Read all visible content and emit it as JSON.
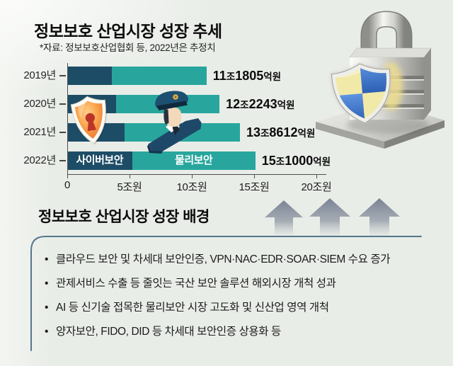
{
  "colors": {
    "background": "#e9ede8",
    "cyber_bar": "#1d4d66",
    "physical_bar": "#28a69d",
    "axis": "#4f4f4f",
    "box_border": "#4e7086",
    "arrow_gray": "#7a8394"
  },
  "header": {
    "title": "정보보호 산업시장 성장 추세",
    "source": "*자료: 정보보호산업협회 등, 2022년은 추정치"
  },
  "icons": {
    "lock": "metal-padlock-with-shield",
    "cyber": "orange-shield-keyhole",
    "physical": "security-officer",
    "arrows": "triple-up-arrows"
  },
  "chart_data": {
    "type": "bar",
    "orientation": "horizontal",
    "unit": "조원",
    "categories": [
      "2019년",
      "2020년",
      "2021년",
      "2022년"
    ],
    "series": [
      {
        "name": "사이버보안",
        "color": "#1d4d66",
        "values": [
          3.6,
          3.9,
          4.6,
          5.2
        ]
      },
      {
        "name": "물리보안",
        "color": "#28a69d",
        "values": [
          7.58,
          8.32,
          9.26,
          9.9
        ]
      }
    ],
    "totals": [
      11.1805,
      12.2243,
      13.8612,
      15.1
    ],
    "value_parts": [
      {
        "jo": "11",
        "eok": "1805"
      },
      {
        "jo": "12",
        "eok": "2243"
      },
      {
        "jo": "13",
        "eok": "8612"
      },
      {
        "jo": "15",
        "eok": "1000"
      }
    ],
    "units": {
      "trillion": "조",
      "hundred_million": "억원"
    },
    "x_ticks": [
      {
        "label": "0",
        "value": 0
      },
      {
        "label": "5조원",
        "value": 5
      },
      {
        "label": "10조원",
        "value": 10
      },
      {
        "label": "15조원",
        "value": 15
      },
      {
        "label": "20조원",
        "value": 20
      }
    ],
    "xlim": [
      0,
      20
    ],
    "segment_labels_on_row": 3,
    "legend_position": "inside-last-bar",
    "grid": false
  },
  "background_section": {
    "title": "정보보호 산업시장 성장 배경",
    "bullets": [
      "클라우드 보안 및 차세대 보안인증, VPN·NAC·EDR·SOAR·SIEM 수요 증가",
      "관제서비스 수출 등 줄잇는 국산 보안 솔루션 해외시장 개척 성과",
      "AI 등 신기술 접목한 물리보안 시장 고도화 및 신산업 영역 개척",
      "양자보안, FIDO, DID 등 차세대 보안인증 상용화 등"
    ]
  }
}
